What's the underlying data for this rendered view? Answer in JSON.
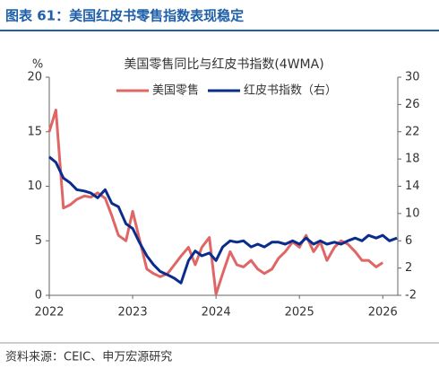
{
  "header": "图表 61：美国红皮书零售指数表现稳定",
  "source": "资料来源：CEIC、申万宏源研究",
  "chart_data": {
    "type": "line",
    "title": "美国零售同比与红皮书指数(4WMA)",
    "y_label": "%",
    "x": [
      2022,
      2022.08,
      2022.17,
      2022.25,
      2022.33,
      2022.42,
      2022.5,
      2022.58,
      2022.67,
      2022.75,
      2022.83,
      2022.92,
      2023,
      2023.08,
      2023.17,
      2023.25,
      2023.33,
      2023.42,
      2023.5,
      2023.58,
      2023.67,
      2023.75,
      2023.83,
      2023.92,
      2024,
      2024.08,
      2024.17,
      2024.25,
      2024.33,
      2024.42,
      2024.5,
      2024.58,
      2024.67,
      2024.75,
      2024.83,
      2024.92,
      2025,
      2025.08,
      2025.17,
      2025.25,
      2025.33,
      2025.42,
      2025.5,
      2025.58,
      2025.67,
      2025.75,
      2025.83,
      2025.92,
      2026,
      2026.08,
      2026.17
    ],
    "xlim": [
      2022,
      2026.18
    ],
    "xticks": [
      2022,
      2023,
      2024,
      2025,
      2026
    ],
    "ylim": [
      0,
      20
    ],
    "yticks": [
      0,
      5,
      10,
      15,
      20
    ],
    "y2lim": [
      -2,
      30
    ],
    "y2ticks": [
      -2,
      2,
      6,
      10,
      14,
      18,
      22,
      26,
      30
    ],
    "series": [
      {
        "name": "美国零售",
        "color": "#e06666",
        "values": [
          15,
          17,
          8,
          8.3,
          8.8,
          9.1,
          9,
          9.4,
          8.9,
          7.3,
          5.5,
          5,
          7.7,
          5.2,
          2.4,
          2,
          1.7,
          2,
          2.8,
          3.6,
          4.4,
          2.8,
          4.4,
          5.3,
          0.1,
          2,
          4,
          2.8,
          2.6,
          3.2,
          2.4,
          2,
          2.4,
          3.4,
          4,
          4.9,
          4.4,
          5.5,
          4,
          4.9,
          3.2,
          4.4,
          5,
          4.7,
          4,
          3.2,
          3.2,
          2.6,
          3,
          null,
          null
        ]
      },
      {
        "name": "红皮书指数（右）",
        "color": "#0a2c8c",
        "axis": "y2",
        "values": [
          18.3,
          17.5,
          15.2,
          14.5,
          13.5,
          13.3,
          13,
          12.3,
          13.5,
          11.5,
          11,
          8.5,
          7.8,
          5.8,
          3.8,
          2.5,
          1.5,
          1,
          0.5,
          -0.2,
          3.1,
          4.5,
          3.8,
          4.2,
          3.1,
          5.1,
          6,
          5.8,
          6,
          5.1,
          5.5,
          5.1,
          5.8,
          5.8,
          5.5,
          6,
          5.5,
          6.4,
          5.5,
          6,
          5.5,
          5.8,
          5.5,
          6,
          6.4,
          6,
          6.8,
          6.4,
          6.8,
          6,
          6.4
        ]
      }
    ]
  }
}
